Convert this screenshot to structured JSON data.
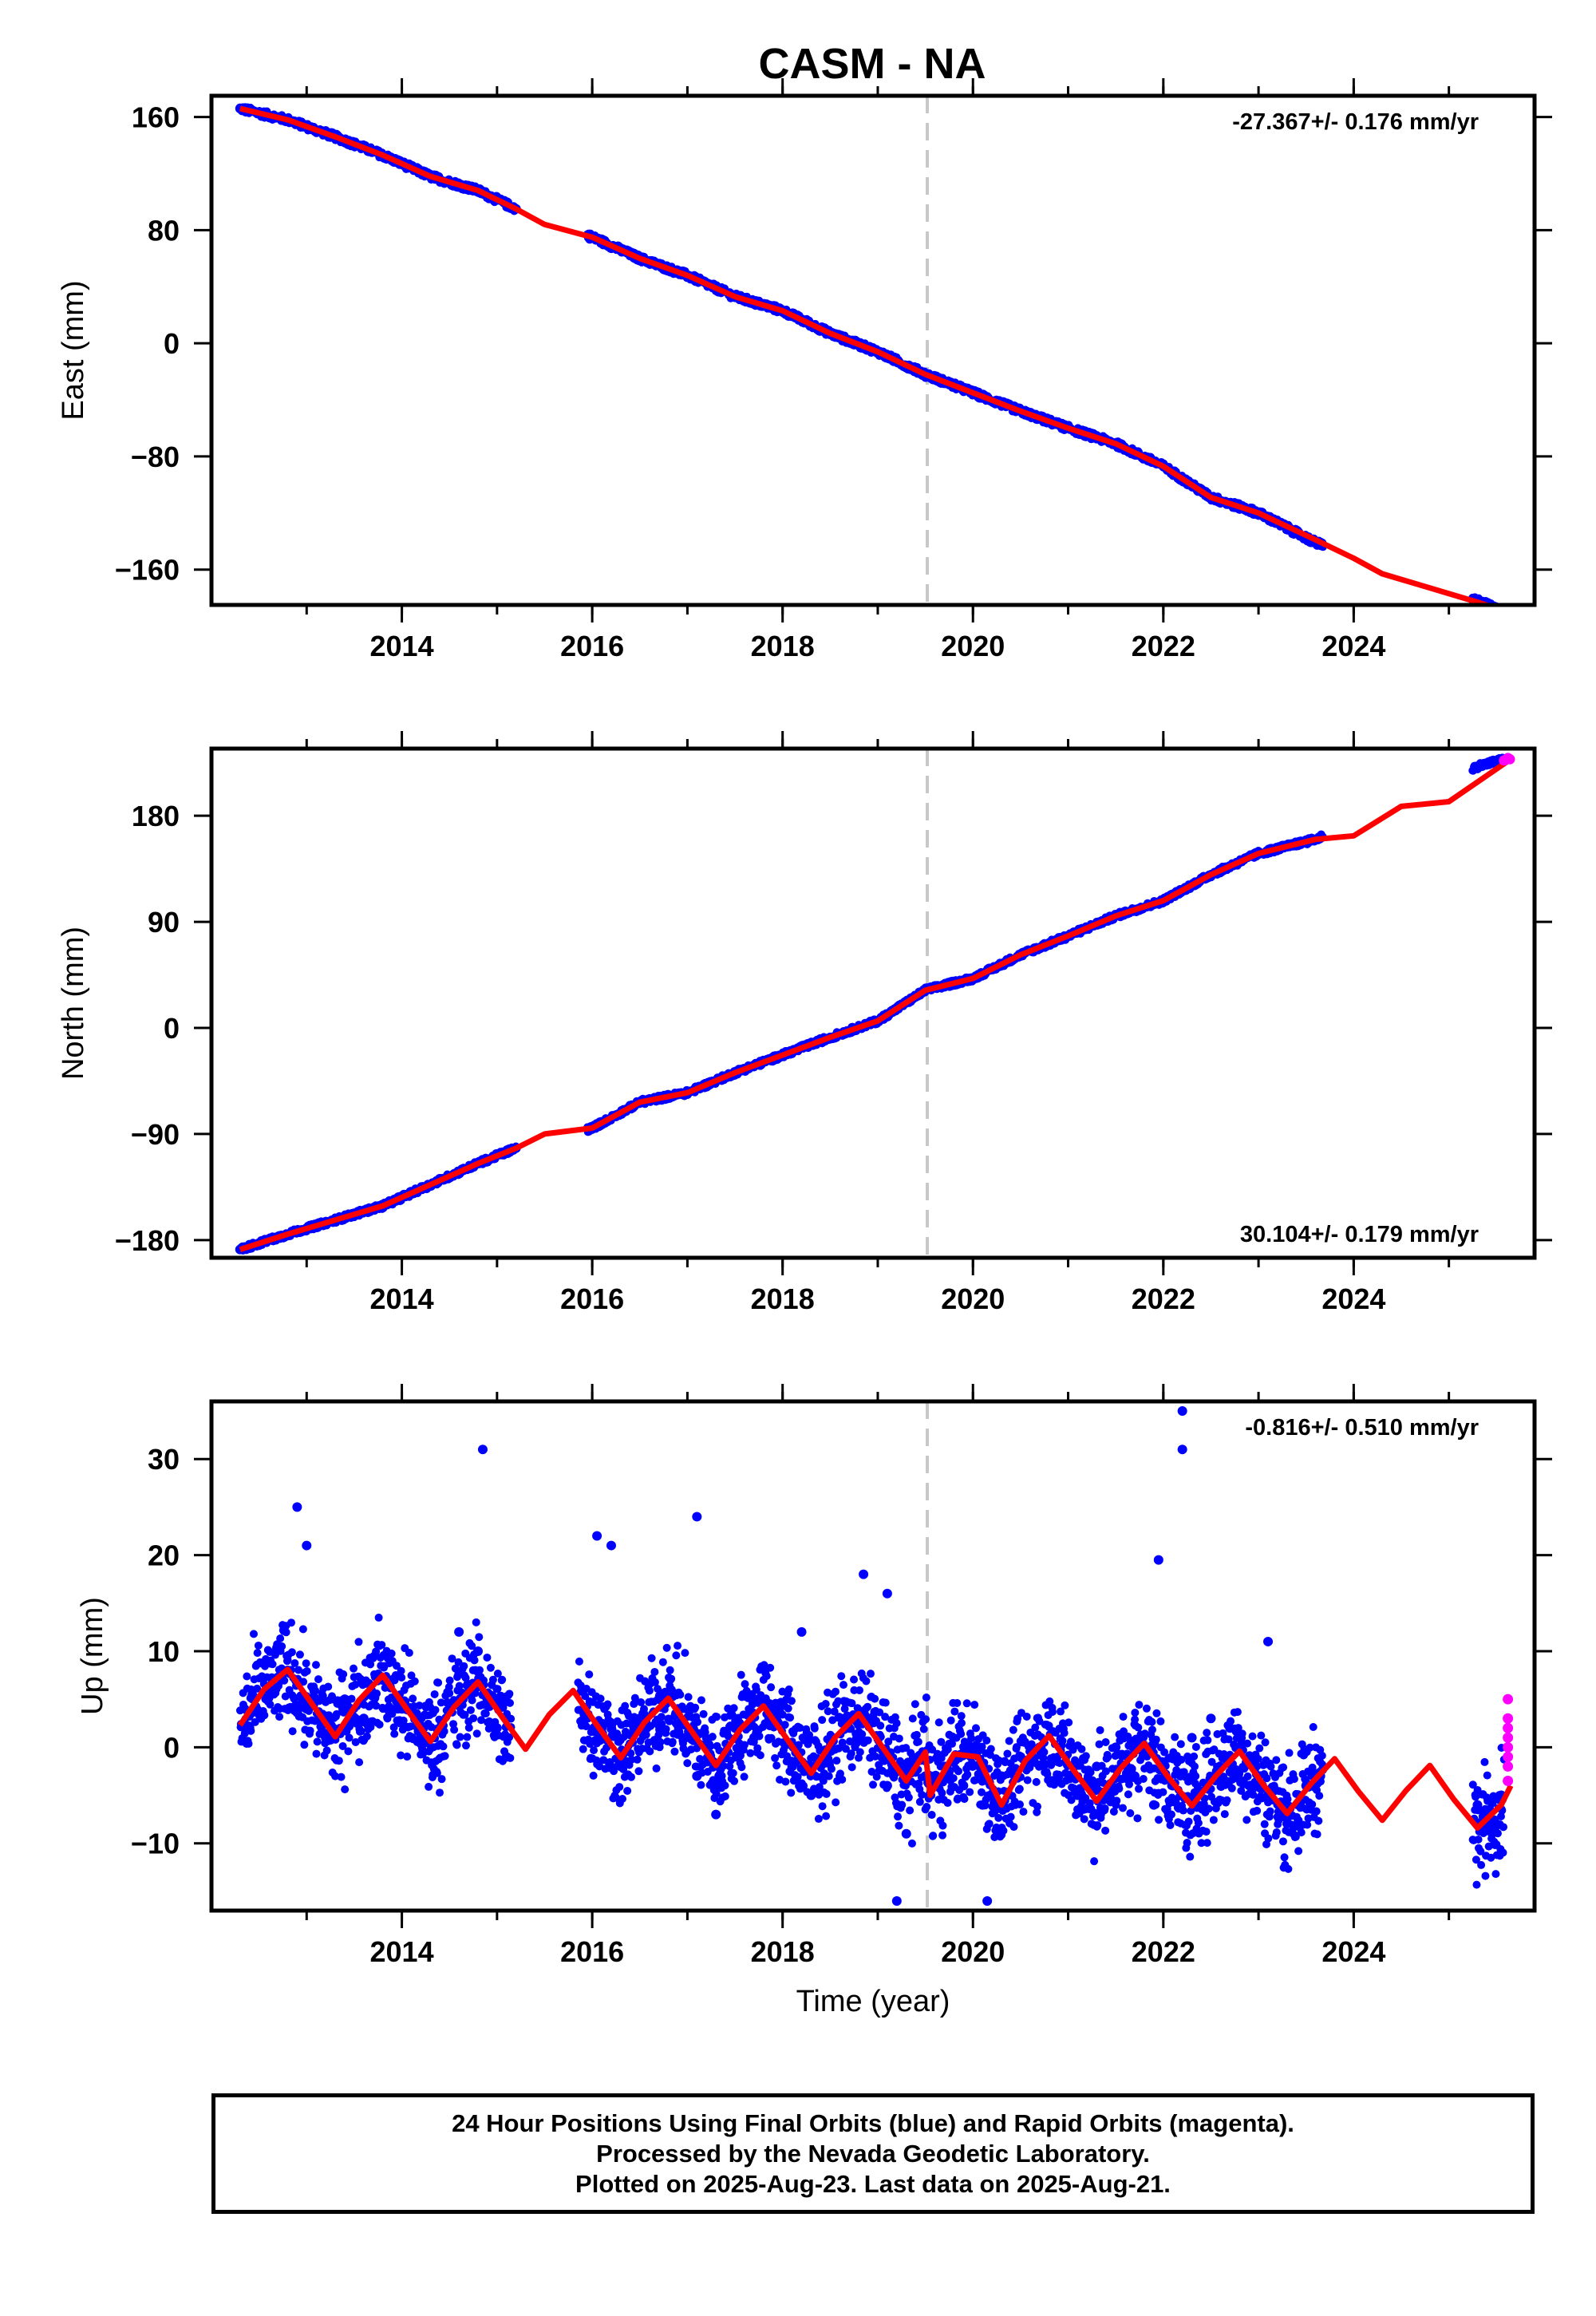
{
  "title": "CASM - NA",
  "footer": {
    "line1": "24 Hour Positions Using Final Orbits (blue) and Rapid Orbits (magenta).",
    "line2": "Processed by the Nevada Geodetic Laboratory.",
    "line3": "Plotted on 2025-Aug-23. Last data on 2025-Aug-21."
  },
  "colors": {
    "final_orbits": "#0000ff",
    "rapid_orbits": "#ff00ff",
    "model": "#ff0000",
    "event_line": "#c8c8c8"
  },
  "chart_data": [
    {
      "type": "scatter",
      "component": "East",
      "ylabel": "East (mm)",
      "xlabel": "",
      "xlim": [
        2012.0,
        2025.9
      ],
      "ylim": [
        -185,
        175
      ],
      "xticks": [
        2014,
        2016,
        2018,
        2020,
        2022,
        2024
      ],
      "xtick_labels": [
        "2014",
        "2016",
        "2018",
        "2020",
        "2022",
        "2024"
      ],
      "yticks": [
        160,
        80,
        0,
        -80,
        -160
      ],
      "ytick_labels": [
        "160",
        "80",
        "0",
        "−80",
        "−160"
      ],
      "rate_text": "-27.367+/- 0.176 mm/yr",
      "rate_position": "top-right",
      "event_line_x": 2019.52,
      "grid": false,
      "series": [
        {
          "name": "Final Orbits",
          "color": "#0000ff",
          "x": [
            2012.3,
            2012.8,
            2013.3,
            2013.8,
            2014.3,
            2014.8,
            2015.2,
            2016.0,
            2016.5,
            2017.0,
            2017.5,
            2018.0,
            2018.5,
            2019.0,
            2019.5,
            2020.0,
            2020.5,
            2021.0,
            2021.5,
            2022.0,
            2022.5,
            2023.0,
            2023.6,
            2025.3,
            2025.6
          ],
          "y": [
            166,
            158,
            146,
            133,
            118,
            108,
            95,
            75,
            60,
            48,
            33,
            23,
            7,
            -6,
            -22,
            -35,
            -48,
            -60,
            -71,
            -87,
            -109,
            -120,
            -141,
            -182,
            -191
          ]
        },
        {
          "name": "Rapid Orbits",
          "color": "#ff00ff",
          "x": [
            2025.58,
            2025.62,
            2025.64
          ],
          "y": [
            -191,
            -192,
            -190
          ]
        },
        {
          "name": "Model",
          "color": "#ff0000",
          "x": [
            2012.3,
            2012.8,
            2013.3,
            2013.8,
            2014.3,
            2014.8,
            2015.2,
            2015.5,
            2016.0,
            2016.5,
            2017.0,
            2017.5,
            2018.0,
            2018.5,
            2019.0,
            2019.5,
            2020.0,
            2020.5,
            2021.0,
            2021.5,
            2022.0,
            2022.5,
            2023.0,
            2023.6,
            2024.0,
            2024.3,
            2024.8,
            2025.3,
            2025.65
          ],
          "y": [
            166,
            158,
            146,
            133,
            118,
            108,
            95,
            84,
            75,
            60,
            48,
            33,
            23,
            7,
            -6,
            -22,
            -35,
            -48,
            -60,
            -71,
            -87,
            -109,
            -120,
            -139,
            -152,
            -163,
            -173,
            -183,
            -191
          ]
        }
      ]
    },
    {
      "type": "scatter",
      "component": "North",
      "ylabel": "North (mm)",
      "xlabel": "",
      "xlim": [
        2012.0,
        2025.9
      ],
      "ylim": [
        -195,
        237
      ],
      "xticks": [
        2014,
        2016,
        2018,
        2020,
        2022,
        2024
      ],
      "xtick_labels": [
        "2014",
        "2016",
        "2018",
        "2020",
        "2022",
        "2024"
      ],
      "yticks": [
        180,
        90,
        0,
        -90,
        -180
      ],
      "ytick_labels": [
        "180",
        "90",
        "0",
        "−90",
        "−180"
      ],
      "rate_text": "30.104+/- 0.179 mm/yr",
      "rate_position": "bottom-right",
      "event_line_x": 2019.52,
      "grid": false,
      "series": [
        {
          "name": "Final Orbits",
          "color": "#0000ff",
          "x": [
            2012.3,
            2012.8,
            2013.3,
            2013.8,
            2014.3,
            2014.8,
            2015.2,
            2016.0,
            2016.5,
            2017.0,
            2017.5,
            2018.0,
            2018.5,
            2019.0,
            2019.5,
            2020.0,
            2020.5,
            2021.0,
            2021.5,
            2022.0,
            2022.5,
            2023.0,
            2023.6,
            2025.3,
            2025.6
          ],
          "y": [
            -188,
            -175,
            -163,
            -151,
            -133,
            -115,
            -102,
            -85,
            -63,
            -55,
            -38,
            -23,
            -8,
            6,
            32,
            42,
            62,
            78,
            95,
            108,
            130,
            148,
            160,
            222,
            228
          ]
        },
        {
          "name": "Rapid Orbits",
          "color": "#ff00ff",
          "x": [
            2025.58,
            2025.62,
            2025.64
          ],
          "y": [
            227,
            229,
            228
          ]
        },
        {
          "name": "Model",
          "color": "#ff0000",
          "x": [
            2012.3,
            2012.8,
            2013.3,
            2013.8,
            2014.3,
            2014.8,
            2015.2,
            2015.5,
            2016.0,
            2016.5,
            2017.0,
            2017.5,
            2018.0,
            2018.5,
            2019.0,
            2019.5,
            2020.0,
            2020.5,
            2021.0,
            2021.5,
            2022.0,
            2022.5,
            2023.0,
            2023.6,
            2024.0,
            2024.5,
            2025.0,
            2025.65
          ],
          "y": [
            -188,
            -175,
            -163,
            -151,
            -133,
            -115,
            -102,
            -90,
            -85,
            -63,
            -55,
            -38,
            -23,
            -8,
            6,
            32,
            42,
            62,
            78,
            95,
            108,
            130,
            148,
            160,
            163,
            188,
            192,
            228
          ]
        }
      ]
    },
    {
      "type": "scatter",
      "component": "Up",
      "ylabel": "Up (mm)",
      "xlabel": "Time (year)",
      "xlim": [
        2012.0,
        2025.9
      ],
      "ylim": [
        -17,
        36
      ],
      "xticks": [
        2014,
        2016,
        2018,
        2020,
        2022,
        2024
      ],
      "xtick_labels": [
        "2014",
        "2016",
        "2018",
        "2020",
        "2022",
        "2024"
      ],
      "yticks": [
        30,
        20,
        10,
        0,
        -10
      ],
      "ytick_labels": [
        "30",
        "20",
        "10",
        "0",
        "−10"
      ],
      "rate_text": "-0.816+/- 0.510 mm/yr",
      "rate_position": "top-right",
      "event_line_x": 2019.52,
      "grid": false,
      "series": [
        {
          "name": "Final Orbits",
          "color": "#0000ff",
          "x": [
            2012.4,
            2012.6,
            2012.8,
            2013.0,
            2013.2,
            2013.4,
            2013.6,
            2013.8,
            2014.0,
            2014.2,
            2014.4,
            2014.6,
            2014.8,
            2015.0,
            2015.1,
            2015.9,
            2016.1,
            2016.3,
            2016.5,
            2016.7,
            2016.9,
            2017.1,
            2017.3,
            2017.5,
            2017.7,
            2017.9,
            2018.1,
            2018.3,
            2018.5,
            2018.7,
            2018.9,
            2019.1,
            2019.3,
            2019.5,
            2019.7,
            2019.9,
            2020.1,
            2020.3,
            2020.5,
            2020.7,
            2020.9,
            2021.1,
            2021.3,
            2021.5,
            2021.7,
            2021.9,
            2022.1,
            2022.3,
            2022.5,
            2022.7,
            2022.9,
            2023.1,
            2023.3,
            2023.5,
            2023.65,
            2025.3,
            2025.45,
            2025.55,
            2012.9,
            2014.85,
            2016.2,
            2017.1,
            2018.85,
            2019.2,
            2020.15,
            2022.2,
            2022.2,
            2021.95,
            2016.05,
            2013.0,
            2019.1,
            2018.2,
            2023.1
          ],
          "y": [
            2,
            6,
            8,
            4,
            1,
            5,
            3,
            7,
            4,
            1,
            2,
            12,
            10,
            2,
            -1,
            6,
            2,
            -2,
            3,
            5,
            4,
            -3,
            -7,
            2,
            1,
            4,
            -2,
            -5,
            0,
            2,
            3,
            -4,
            -9,
            -3,
            -2,
            -4,
            -6,
            -3,
            -1,
            0,
            -3,
            -5,
            -2,
            0,
            -3,
            -6,
            -4,
            1,
            3,
            2,
            -1,
            -5,
            -7,
            -4,
            -3,
            -6,
            -8,
            -5,
            25,
            31,
            21,
            24,
            18,
            -16,
            -16,
            35,
            31,
            19.5,
            22,
            21,
            16,
            12,
            11
          ]
        },
        {
          "name": "Rapid Orbits",
          "color": "#ff00ff",
          "x": [
            2025.62,
            2025.62,
            2025.62,
            2025.62,
            2025.62,
            2025.62,
            2025.62,
            2025.62
          ],
          "y": [
            5,
            3,
            2,
            1,
            0,
            -1,
            -2,
            -3.5
          ]
        },
        {
          "name": "Model",
          "color": "#ff0000",
          "x": [
            2012.3,
            2012.55,
            2012.8,
            2013.05,
            2013.3,
            2013.55,
            2013.8,
            2014.05,
            2014.3,
            2014.55,
            2014.8,
            2015.05,
            2015.3,
            2015.55,
            2015.8,
            2016.05,
            2016.3,
            2016.55,
            2016.8,
            2017.05,
            2017.3,
            2017.55,
            2017.8,
            2018.05,
            2018.3,
            2018.55,
            2018.8,
            2019.05,
            2019.3,
            2019.5,
            2019.55,
            2019.8,
            2020.05,
            2020.3,
            2020.55,
            2020.8,
            2021.05,
            2021.3,
            2021.55,
            2021.8,
            2022.05,
            2022.3,
            2022.55,
            2022.8,
            2023.05,
            2023.3,
            2023.55,
            2023.8,
            2024.05,
            2024.3,
            2024.55,
            2024.8,
            2025.05,
            2025.3,
            2025.55,
            2025.65
          ],
          "y": [
            2.3,
            6.0,
            8.1,
            4.6,
            1.1,
            4.9,
            7.5,
            4.0,
            0.6,
            4.2,
            6.8,
            3.2,
            -0.2,
            3.4,
            5.9,
            2.3,
            -1.1,
            2.6,
            5.1,
            1.6,
            -1.9,
            1.8,
            4.3,
            0.8,
            -2.7,
            1.0,
            3.5,
            0.0,
            -3.5,
            -0.5,
            -5.0,
            -0.7,
            -1.0,
            -6.0,
            -1.4,
            1.2,
            -2.3,
            -5.6,
            -2.2,
            0.4,
            -3.1,
            -6.1,
            -3.0,
            -0.4,
            -3.9,
            -6.9,
            -3.8,
            -1.2,
            -4.6,
            -7.6,
            -4.5,
            -1.9,
            -5.4,
            -8.4,
            -6.0,
            -4.0
          ]
        }
      ]
    }
  ]
}
